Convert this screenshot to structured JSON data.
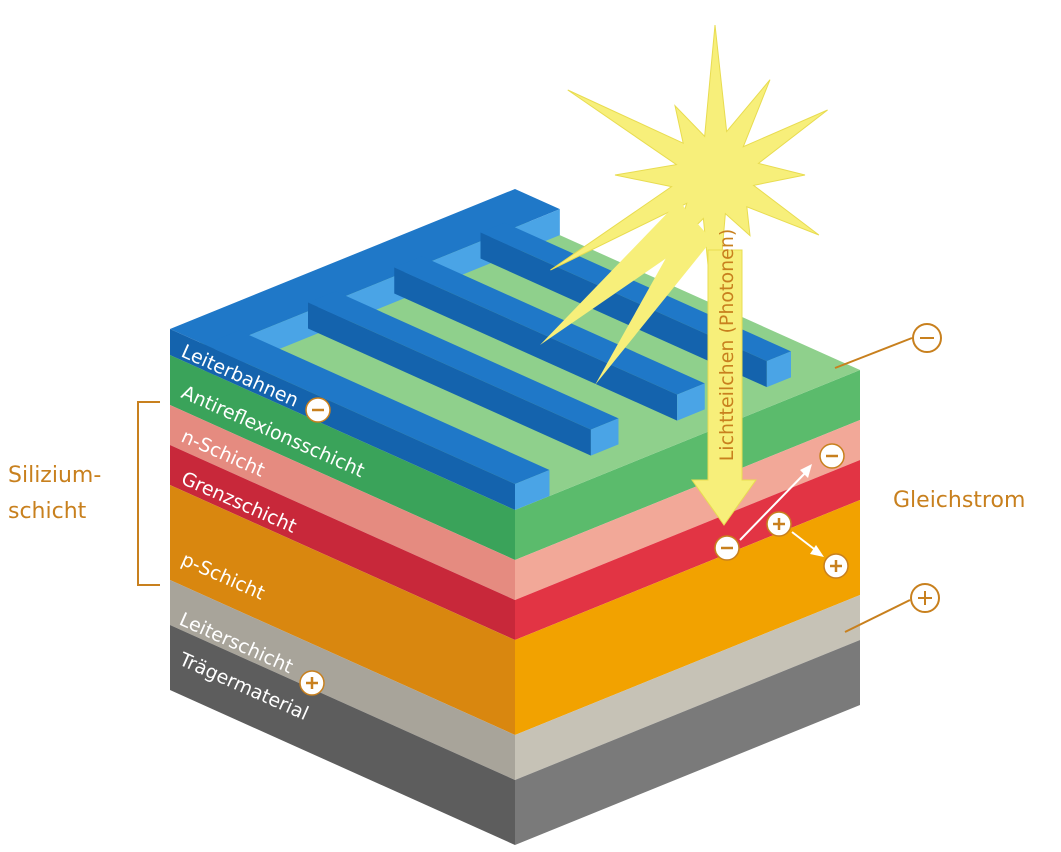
{
  "layer_labels": [
    "Leiterbahnen",
    "Antireflexionsschicht",
    "n-Schicht",
    "Grenzschicht",
    "p-Schicht",
    "Leiterschicht",
    "Trägermaterial"
  ],
  "side_label": [
    "Silizium-",
    "schicht"
  ],
  "current_label": "Gleichstrom",
  "light_label": "Lichtteilchen (Photonen)"
}
